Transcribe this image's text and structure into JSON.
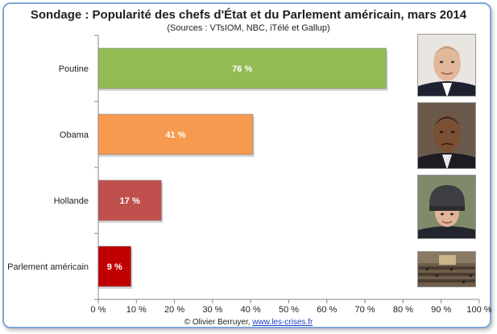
{
  "header": {
    "title": "Sondage : Popularité des chefs d'État et du Parlement américain, mars 2014",
    "subtitle": "(Sources : VTsIOM, NBC, iTélé et Gallup)"
  },
  "footer": {
    "credit": "© Olivier Berruyer, ",
    "link": "www.les-crises.fr"
  },
  "photos": [
    {
      "name": "putin-photo-icon"
    },
    {
      "name": "obama-photo-icon"
    },
    {
      "name": "hollande-photo-icon"
    },
    {
      "name": "congress-photo-icon"
    }
  ],
  "chart_data": {
    "type": "bar",
    "orientation": "horizontal",
    "title": "Sondage : Popularité des chefs d'État et du Parlement américain, mars 2014",
    "subtitle": "(Sources : VTsIOM, NBC, iTélé et Gallup)",
    "categories": [
      "Poutine",
      "Obama",
      "Hollande",
      "Parlement américain"
    ],
    "values": [
      76,
      41,
      17,
      9
    ],
    "data_labels": [
      "76 %",
      "41 %",
      "17 %",
      "9 %"
    ],
    "colors": [
      "#92bb53",
      "#f59a4e",
      "#c0504d",
      "#c00000"
    ],
    "xlim": [
      0,
      100
    ],
    "xticks": [
      0,
      10,
      20,
      30,
      40,
      50,
      60,
      70,
      80,
      90,
      100
    ],
    "xtick_labels": [
      "0 %",
      "10 %",
      "20 %",
      "30 %",
      "40 %",
      "50 %",
      "60 %",
      "70 %",
      "80 %",
      "90 %",
      "100 %"
    ],
    "grid": false,
    "legend": "none"
  }
}
